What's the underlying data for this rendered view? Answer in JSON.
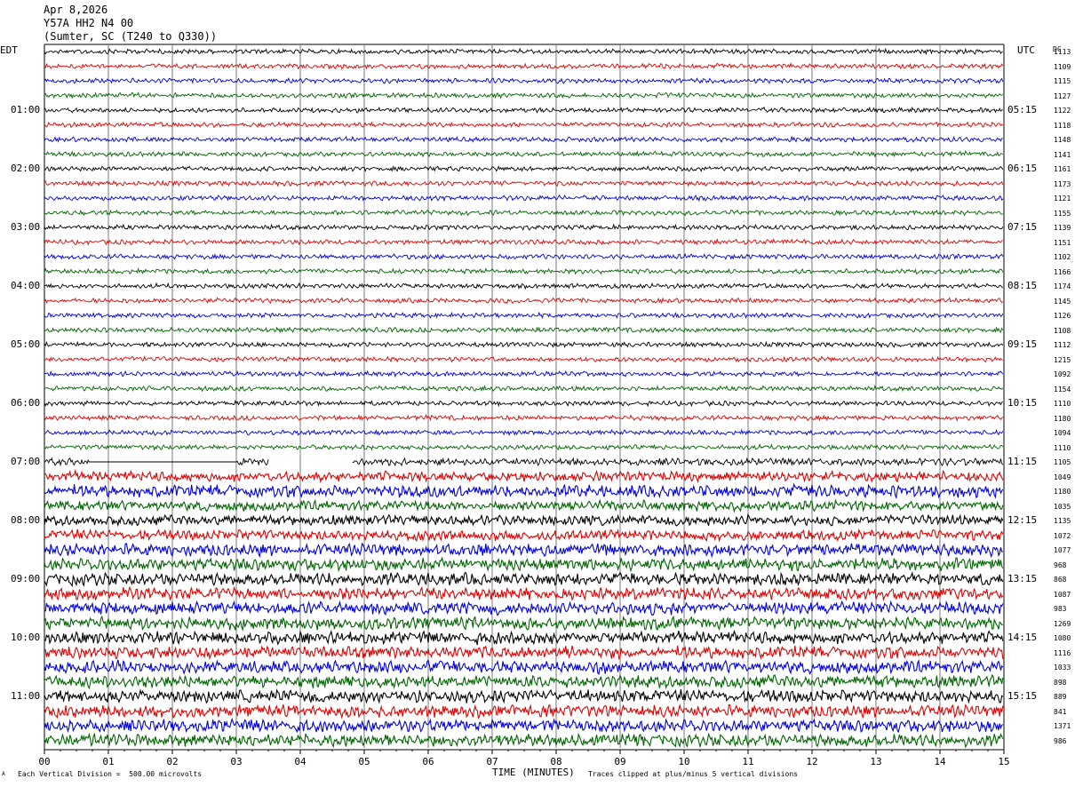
{
  "header": {
    "date": "Apr 8,2026",
    "station": "Y57A HH2 N4 00",
    "location": "(Sumter, SC (T240 to Q330))"
  },
  "left_tz": "EDT",
  "right_tz": "UTC",
  "dc_label": "DC",
  "footer": {
    "left_note": "Each Vertical Division =  500.00 microvolts",
    "xaxis_title": "TIME (MINUTES)",
    "right_note": "Traces clipped at plus/minus 5 vertical divisions",
    "corner_mark": "A"
  },
  "chart_data": {
    "type": "line",
    "xlabel": "TIME (MINUTES)",
    "xlim": [
      0,
      15
    ],
    "x_ticks": [
      "00",
      "01",
      "02",
      "03",
      "04",
      "05",
      "06",
      "07",
      "08",
      "09",
      "10",
      "11",
      "12",
      "13",
      "14",
      "15"
    ],
    "trace_colors": [
      "#000000",
      "#e00000",
      "#0000dd",
      "#006400"
    ],
    "left_hour_labels": [
      "01:00",
      "02:00",
      "03:00",
      "04:00",
      "05:00",
      "06:00",
      "07:00",
      "08:00",
      "09:00",
      "10:00",
      "11:00"
    ],
    "right_hour_labels": [
      "05:15",
      "06:15",
      "07:15",
      "08:15",
      "09:15",
      "10:15",
      "11:15",
      "12:15",
      "13:15",
      "14:15",
      "15:15"
    ],
    "dc_offsets": [
      1113,
      1109,
      1115,
      1127,
      1122,
      1118,
      1148,
      1141,
      1161,
      1173,
      1121,
      1155,
      1139,
      1151,
      1102,
      1166,
      1174,
      1145,
      1126,
      1108,
      1112,
      1215,
      1092,
      1154,
      1110,
      1180,
      1094,
      1110,
      1105,
      1049,
      1180,
      1035,
      1135,
      1072,
      1077,
      968,
      868,
      1087,
      983,
      1269,
      1080,
      1116,
      1033,
      898,
      889,
      841,
      1371,
      986
    ],
    "trace_amplitude": [
      2,
      2,
      2,
      2,
      2,
      2,
      2,
      2,
      2,
      2,
      2,
      2,
      2,
      2,
      2,
      2,
      2,
      2,
      2,
      2,
      2,
      2,
      2,
      2,
      2,
      2,
      2,
      2,
      3,
      4,
      5,
      4,
      4,
      4,
      5,
      5,
      5,
      5,
      5,
      5,
      5,
      5,
      5,
      5,
      5,
      5,
      5,
      5
    ],
    "gap_segments": [
      {
        "trace": 28,
        "start_min": 3.5,
        "end_min": 4.8
      },
      {
        "trace": 28,
        "start_min": 0.7,
        "end_min": 3.0,
        "flat": true
      }
    ]
  }
}
